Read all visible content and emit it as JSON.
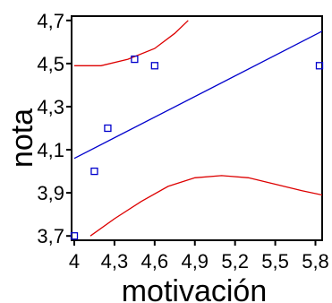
{
  "chart_data": {
    "type": "scatter",
    "title": "",
    "xlabel": "motivación",
    "ylabel": "nota",
    "xlim": [
      3.98,
      5.85
    ],
    "ylim": [
      3.68,
      4.72
    ],
    "x_ticks": [
      4.0,
      4.3,
      4.6,
      4.9,
      5.2,
      5.5,
      5.8
    ],
    "x_tick_labels": [
      "4",
      "4,3",
      "4,6",
      "4,9",
      "5,2",
      "5,5",
      "5,8"
    ],
    "y_ticks": [
      3.7,
      3.9,
      4.1,
      4.3,
      4.5,
      4.7
    ],
    "y_tick_labels": [
      "3,7",
      "3,9",
      "4,1",
      "4,3",
      "4,5",
      "4,7"
    ],
    "grid": false,
    "points": [
      {
        "x": 4.0,
        "y": 3.7
      },
      {
        "x": 4.15,
        "y": 4.0
      },
      {
        "x": 4.25,
        "y": 4.2
      },
      {
        "x": 4.45,
        "y": 4.52
      },
      {
        "x": 4.6,
        "y": 4.49
      },
      {
        "x": 5.83,
        "y": 4.49
      }
    ],
    "fit_line": {
      "x": [
        4.0,
        5.85
      ],
      "y": [
        4.06,
        4.65
      ]
    },
    "upper_band": {
      "x": [
        4.0,
        4.2,
        4.4,
        4.6,
        4.75,
        4.85
      ],
      "y": [
        4.49,
        4.49,
        4.52,
        4.57,
        4.64,
        4.7
      ]
    },
    "lower_band": {
      "x": [
        4.12,
        4.3,
        4.5,
        4.7,
        4.9,
        5.1,
        5.3,
        5.5,
        5.7,
        5.85
      ],
      "y": [
        3.7,
        3.78,
        3.86,
        3.93,
        3.97,
        3.98,
        3.97,
        3.94,
        3.91,
        3.89
      ]
    },
    "colors": {
      "points": "#0000cc",
      "fit_line": "#0000cc",
      "bands": "#dd0000",
      "axes": "#000000"
    }
  }
}
